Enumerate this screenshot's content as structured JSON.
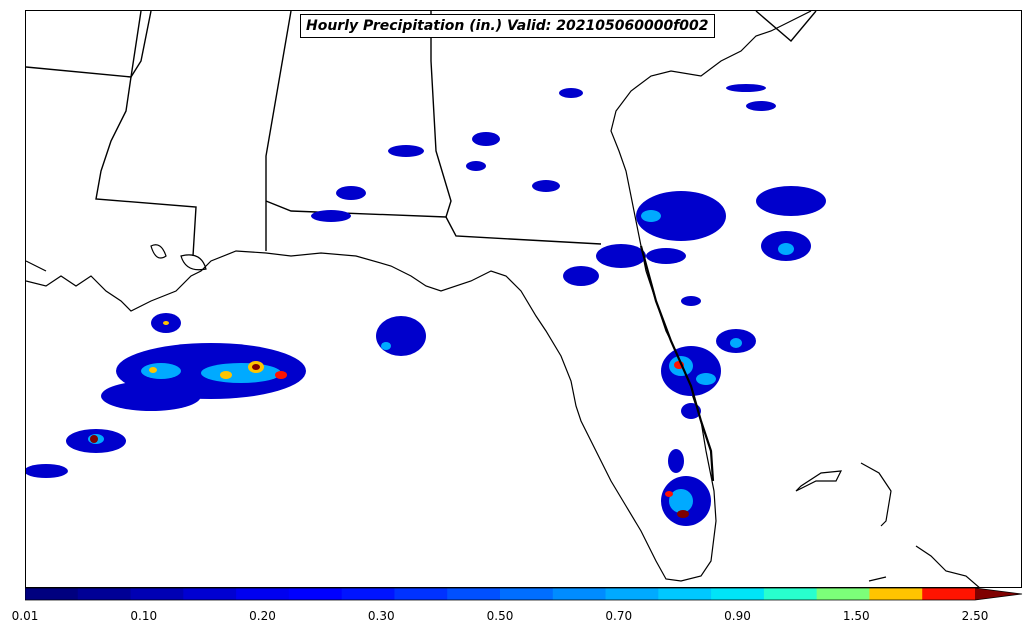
{
  "title": "Hourly Precipitation (in.) Valid: 202105060000f002",
  "colorbar": {
    "tick_labels": [
      "0.01",
      "0.10",
      "0.20",
      "0.30",
      "0.50",
      "0.70",
      "0.90",
      "1.50",
      "2.50"
    ],
    "colors": [
      "#00007f",
      "#000096",
      "#0000b4",
      "#0000d2",
      "#0000f0",
      "#0000ff",
      "#0014ff",
      "#0032ff",
      "#0050ff",
      "#006eff",
      "#008cff",
      "#00aaff",
      "#00c8ff",
      "#00e4f8",
      "#28ffce",
      "#7cff79",
      "#ffc400",
      "#ff1300",
      "#7f0000"
    ]
  },
  "colors": {
    "coastline": "#000000",
    "background": "#ffffff"
  }
}
